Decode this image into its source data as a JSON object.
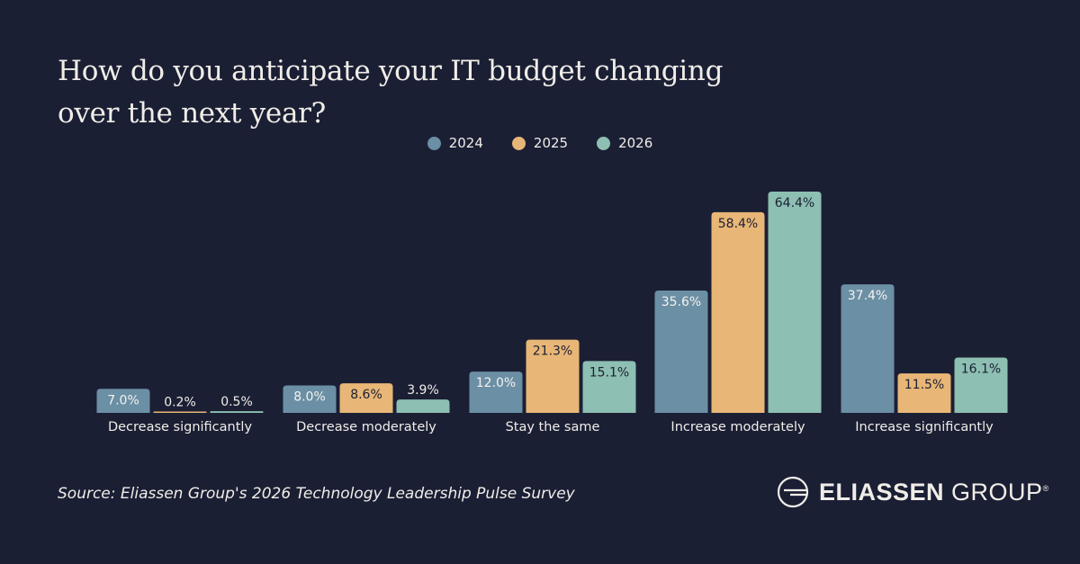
{
  "chart_data": {
    "type": "bar",
    "title": "How do you anticipate your IT budget changing over the next year?",
    "categories": [
      "Decrease significantly",
      "Decrease moderately",
      "Stay the same",
      "Increase moderately",
      "Increase significantly"
    ],
    "series": [
      {
        "name": "2024",
        "color": "#6b8fa4",
        "label_color": "#f5f2ee",
        "values": [
          7.0,
          8.0,
          12.0,
          35.6,
          37.4
        ]
      },
      {
        "name": "2025",
        "color": "#e8b676",
        "label_color": "#1b1f34",
        "values": [
          0.2,
          8.6,
          21.3,
          58.4,
          11.5
        ]
      },
      {
        "name": "2026",
        "color": "#8dbfb2",
        "label_color": "#1b1f34",
        "values": [
          0.5,
          3.9,
          15.1,
          64.4,
          16.1
        ]
      }
    ],
    "value_suffix": "%",
    "ylim": [
      0,
      70
    ],
    "grid": false,
    "legend_position": "top-center"
  },
  "source": "Source: Eliassen Group's 2026 Technology Leadership Pulse Survey",
  "logo": {
    "bold": "ELIASSEN",
    "light": "GROUP",
    "mark": "®"
  }
}
